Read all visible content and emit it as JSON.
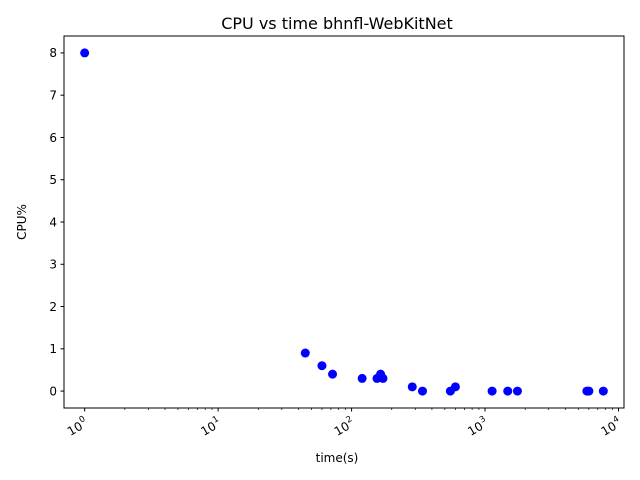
{
  "chart_data": {
    "type": "scatter",
    "title": "CPU vs time bhnfl-WebKitNet",
    "xlabel": "time(s)",
    "ylabel": "CPU%",
    "xscale": "log",
    "xlim": [
      0.7,
      11000
    ],
    "ylim": [
      -0.4,
      8.4
    ],
    "xticks": [
      {
        "value": 1,
        "base": "10",
        "exp": "0"
      },
      {
        "value": 10,
        "base": "10",
        "exp": "1"
      },
      {
        "value": 100,
        "base": "10",
        "exp": "2"
      },
      {
        "value": 1000,
        "base": "10",
        "exp": "3"
      },
      {
        "value": 10000,
        "base": "10",
        "exp": "4"
      }
    ],
    "yticks": [
      "0",
      "1",
      "2",
      "3",
      "4",
      "5",
      "6",
      "7",
      "8"
    ],
    "marker_color": "#0000ff",
    "grid": false,
    "legend": "none",
    "points": [
      {
        "x": 1,
        "y": 8
      },
      {
        "x": 45,
        "y": 0.9
      },
      {
        "x": 60,
        "y": 0.6
      },
      {
        "x": 72,
        "y": 0.4
      },
      {
        "x": 120,
        "y": 0.3
      },
      {
        "x": 155,
        "y": 0.3
      },
      {
        "x": 165,
        "y": 0.4
      },
      {
        "x": 172,
        "y": 0.3
      },
      {
        "x": 285,
        "y": 0.1
      },
      {
        "x": 340,
        "y": 0.0
      },
      {
        "x": 550,
        "y": 0.0
      },
      {
        "x": 600,
        "y": 0.1
      },
      {
        "x": 1130,
        "y": 0.0
      },
      {
        "x": 1480,
        "y": 0.0
      },
      {
        "x": 1750,
        "y": 0.0
      },
      {
        "x": 5800,
        "y": 0.0
      },
      {
        "x": 6000,
        "y": 0.0
      },
      {
        "x": 7700,
        "y": 0.0
      }
    ]
  }
}
